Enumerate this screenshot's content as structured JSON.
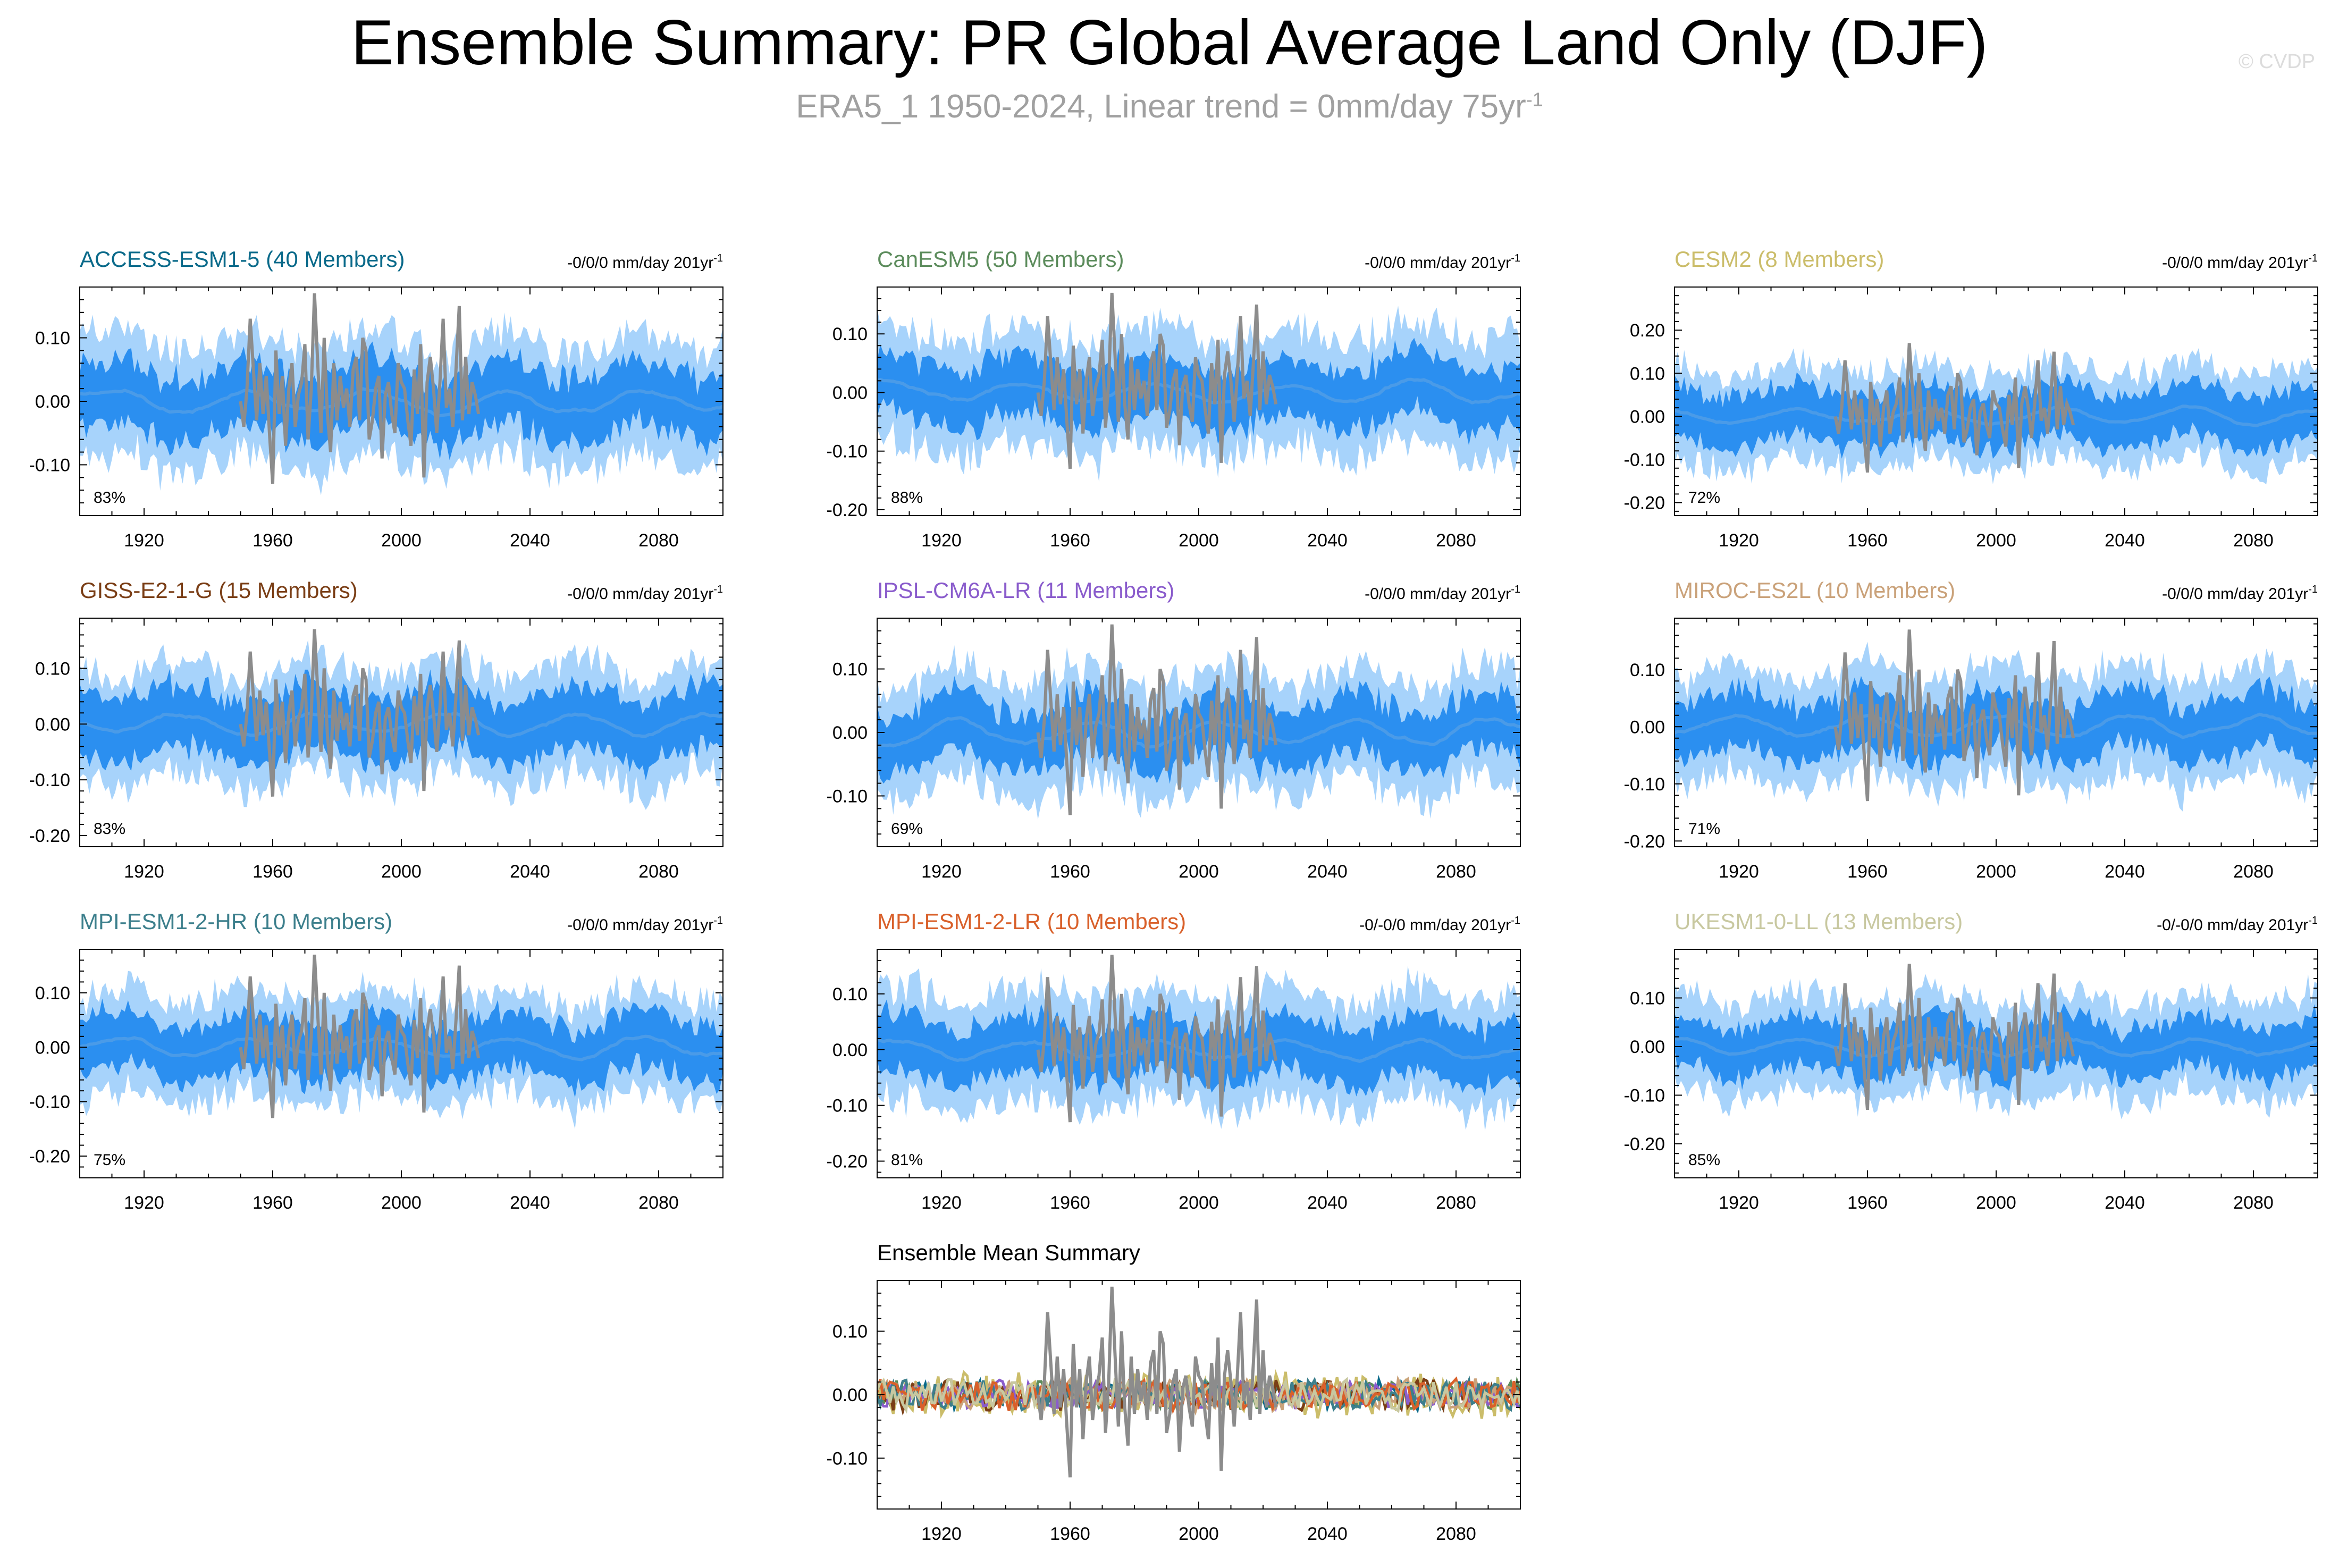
{
  "header": {
    "title": "Ensemble Summary: PR Global Average Land Only (DJF)",
    "subtitle_main": "ERA5_1 1950-2024, Linear trend = 0mm/day 75yr",
    "subtitle_sup": "-1",
    "watermark": "© CVDP"
  },
  "colors": {
    "obs_line": "#8c8c8c",
    "band_outer": "#a7d3fb",
    "band_inner": "#2b8ff0",
    "mean_line": "#4a9be8",
    "frame": "#000000"
  },
  "chart_data": [
    {
      "type": "area",
      "title": "ACCESS-ESM1-5 (40 Members)",
      "title_color": "#0a6a8a",
      "trend_label": "-0/0/0 mm/day 201yr",
      "trend_sup": "-1",
      "percent_label": "83%",
      "xlim": [
        1900,
        2100
      ],
      "x_ticks": [
        1920,
        1960,
        2000,
        2040,
        2080
      ],
      "ylim": [
        -0.18,
        0.18
      ],
      "y_ticks": [
        0.1,
        0.0,
        -0.1
      ],
      "y_tick_labels": [
        "0.10",
        "0.00",
        "-0.10"
      ],
      "outer_band_halfwidth": 0.095,
      "inner_band_halfwidth": 0.05,
      "obs_period": [
        1950,
        2024
      ],
      "series": [
        {
          "name": "ACCESS-ESM1-5",
          "kind": "ensemble"
        },
        {
          "name": "ERA5_1",
          "kind": "observation"
        }
      ]
    },
    {
      "type": "area",
      "title": "CanESM5 (50 Members)",
      "title_color": "#5c8c5c",
      "trend_label": "-0/0/0 mm/day 201yr",
      "trend_sup": "-1",
      "percent_label": "88%",
      "xlim": [
        1900,
        2100
      ],
      "x_ticks": [
        1920,
        1960,
        2000,
        2040,
        2080
      ],
      "ylim": [
        -0.21,
        0.18
      ],
      "y_ticks": [
        0.1,
        0.0,
        -0.1,
        -0.2
      ],
      "y_tick_labels": [
        "0.10",
        "0.00",
        "-0.10",
        "-0.20"
      ],
      "outer_band_halfwidth": 0.1,
      "inner_band_halfwidth": 0.05,
      "obs_period": [
        1950,
        2024
      ],
      "series": [
        {
          "name": "CanESM5",
          "kind": "ensemble"
        },
        {
          "name": "ERA5_1",
          "kind": "observation"
        }
      ]
    },
    {
      "type": "area",
      "title": "CESM2 (8 Members)",
      "title_color": "#cbbd6a",
      "trend_label": "-0/0/0 mm/day 201yr",
      "trend_sup": "-1",
      "percent_label": "72%",
      "xlim": [
        1900,
        2100
      ],
      "x_ticks": [
        1920,
        1960,
        2000,
        2040,
        2080
      ],
      "ylim": [
        -0.23,
        0.3
      ],
      "y_ticks": [
        0.2,
        0.1,
        0.0,
        -0.1,
        -0.2
      ],
      "y_tick_labels": [
        "0.20",
        "0.10",
        "0.00",
        "-0.10",
        "-0.20"
      ],
      "outer_band_halfwidth": 0.11,
      "inner_band_halfwidth": 0.06,
      "obs_period": [
        1950,
        2024
      ],
      "series": [
        {
          "name": "CESM2",
          "kind": "ensemble"
        },
        {
          "name": "ERA5_1",
          "kind": "observation"
        }
      ]
    },
    {
      "type": "area",
      "title": "GISS-E2-1-G (15 Members)",
      "title_color": "#7a3e16",
      "trend_label": "-0/0/0 mm/day 201yr",
      "trend_sup": "-1",
      "percent_label": "83%",
      "xlim": [
        1900,
        2100
      ],
      "x_ticks": [
        1920,
        1960,
        2000,
        2040,
        2080
      ],
      "ylim": [
        -0.22,
        0.19
      ],
      "y_ticks": [
        0.1,
        0.0,
        -0.1,
        -0.2
      ],
      "y_tick_labels": [
        "0.10",
        "0.00",
        "-0.10",
        "-0.20"
      ],
      "outer_band_halfwidth": 0.1,
      "inner_band_halfwidth": 0.055,
      "obs_period": [
        1950,
        2024
      ],
      "series": [
        {
          "name": "GISS-E2-1-G",
          "kind": "ensemble"
        },
        {
          "name": "ERA5_1",
          "kind": "observation"
        }
      ]
    },
    {
      "type": "area",
      "title": "IPSL-CM6A-LR (11 Members)",
      "title_color": "#8a5ccc",
      "trend_label": "-0/0/0 mm/day 201yr",
      "trend_sup": "-1",
      "percent_label": "69%",
      "xlim": [
        1900,
        2100
      ],
      "x_ticks": [
        1920,
        1960,
        2000,
        2040,
        2080
      ],
      "ylim": [
        -0.18,
        0.18
      ],
      "y_ticks": [
        0.1,
        0.0,
        -0.1
      ],
      "y_tick_labels": [
        "0.10",
        "0.00",
        "-0.10"
      ],
      "outer_band_halfwidth": 0.09,
      "inner_band_halfwidth": 0.045,
      "obs_period": [
        1950,
        2024
      ],
      "series": [
        {
          "name": "IPSL-CM6A-LR",
          "kind": "ensemble"
        },
        {
          "name": "ERA5_1",
          "kind": "observation"
        }
      ]
    },
    {
      "type": "area",
      "title": "MIROC-ES2L (10 Members)",
      "title_color": "#caa27a",
      "trend_label": "-0/0/0 mm/day 201yr",
      "trend_sup": "-1",
      "percent_label": "71%",
      "xlim": [
        1900,
        2100
      ],
      "x_ticks": [
        1920,
        1960,
        2000,
        2040,
        2080
      ],
      "ylim": [
        -0.21,
        0.19
      ],
      "y_ticks": [
        0.1,
        0.0,
        -0.1,
        -0.2
      ],
      "y_tick_labels": [
        "0.10",
        "0.00",
        "-0.10",
        "-0.20"
      ],
      "outer_band_halfwidth": 0.095,
      "inner_band_halfwidth": 0.05,
      "obs_period": [
        1950,
        2024
      ],
      "series": [
        {
          "name": "MIROC-ES2L",
          "kind": "ensemble"
        },
        {
          "name": "ERA5_1",
          "kind": "observation"
        }
      ]
    },
    {
      "type": "area",
      "title": "MPI-ESM1-2-HR (10 Members)",
      "title_color": "#3c7f8c",
      "trend_label": "-0/0/0 mm/day 201yr",
      "trend_sup": "-1",
      "percent_label": "75%",
      "xlim": [
        1900,
        2100
      ],
      "x_ticks": [
        1920,
        1960,
        2000,
        2040,
        2080
      ],
      "ylim": [
        -0.24,
        0.18
      ],
      "y_ticks": [
        0.1,
        0.0,
        -0.1,
        -0.2
      ],
      "y_tick_labels": [
        "0.10",
        "0.00",
        "-0.10",
        "-0.20"
      ],
      "outer_band_halfwidth": 0.095,
      "inner_band_halfwidth": 0.05,
      "obs_period": [
        1950,
        2024
      ],
      "series": [
        {
          "name": "MPI-ESM1-2-HR",
          "kind": "ensemble"
        },
        {
          "name": "ERA5_1",
          "kind": "observation"
        }
      ]
    },
    {
      "type": "area",
      "title": "MPI-ESM1-2-LR (10 Members)",
      "title_color": "#d9602a",
      "trend_label": "-0/-0/0 mm/day 201yr",
      "trend_sup": "-1",
      "percent_label": "81%",
      "xlim": [
        1900,
        2100
      ],
      "x_ticks": [
        1920,
        1960,
        2000,
        2040,
        2080
      ],
      "ylim": [
        -0.23,
        0.18
      ],
      "y_ticks": [
        0.1,
        0.0,
        -0.1,
        -0.2
      ],
      "y_tick_labels": [
        "0.10",
        "0.00",
        "-0.10",
        "-0.20"
      ],
      "outer_band_halfwidth": 0.1,
      "inner_band_halfwidth": 0.05,
      "obs_period": [
        1950,
        2024
      ],
      "series": [
        {
          "name": "MPI-ESM1-2-LR",
          "kind": "ensemble"
        },
        {
          "name": "ERA5_1",
          "kind": "observation"
        }
      ]
    },
    {
      "type": "area",
      "title": "UKESM1-0-LL (13 Members)",
      "title_color": "#c8c8a0",
      "trend_label": "-0/-0/0 mm/day 201yr",
      "trend_sup": "-1",
      "percent_label": "85%",
      "xlim": [
        1900,
        2100
      ],
      "x_ticks": [
        1920,
        1960,
        2000,
        2040,
        2080
      ],
      "ylim": [
        -0.27,
        0.2
      ],
      "y_ticks": [
        0.1,
        0.0,
        -0.1,
        -0.2
      ],
      "y_tick_labels": [
        "0.10",
        "0.00",
        "-0.10",
        "-0.20"
      ],
      "outer_band_halfwidth": 0.1,
      "inner_band_halfwidth": 0.05,
      "obs_period": [
        1950,
        2024
      ],
      "series": [
        {
          "name": "UKESM1-0-LL",
          "kind": "ensemble"
        },
        {
          "name": "ERA5_1",
          "kind": "observation"
        }
      ]
    },
    {
      "type": "line",
      "title": "Ensemble Mean Summary",
      "title_color": "#000000",
      "xlim": [
        1900,
        2100
      ],
      "x_ticks": [
        1920,
        1960,
        2000,
        2040,
        2080
      ],
      "ylim": [
        -0.18,
        0.18
      ],
      "y_ticks": [
        0.1,
        0.0,
        -0.1
      ],
      "y_tick_labels": [
        "0.10",
        "0.00",
        "-0.10"
      ],
      "series": [
        {
          "name": "ACCESS-ESM1-5",
          "color": "#0a6a8a",
          "amp": 0.02
        },
        {
          "name": "CanESM5",
          "color": "#5c8c5c",
          "amp": 0.02
        },
        {
          "name": "CESM2",
          "color": "#cbbd6a",
          "amp": 0.035
        },
        {
          "name": "GISS-E2-1-G",
          "color": "#7a3e16",
          "amp": 0.022
        },
        {
          "name": "IPSL-CM6A-LR",
          "color": "#8a5ccc",
          "amp": 0.02
        },
        {
          "name": "MIROC-ES2L",
          "color": "#caa27a",
          "amp": 0.022
        },
        {
          "name": "MPI-ESM1-2-HR",
          "color": "#3c7f8c",
          "amp": 0.02
        },
        {
          "name": "MPI-ESM1-2-LR",
          "color": "#d9602a",
          "amp": 0.022
        },
        {
          "name": "UKESM1-0-LL",
          "color": "#c8c8a0",
          "amp": 0.022
        },
        {
          "name": "ERA5_1",
          "color": "#8c8c8c",
          "kind": "observation"
        }
      ]
    }
  ],
  "observation_values": [
    0.0,
    -0.04,
    0.02,
    0.13,
    0.05,
    -0.03,
    0.06,
    -0.02,
    0.04,
    -0.05,
    -0.13,
    0.08,
    -0.02,
    0.04,
    -0.07,
    0.02,
    0.06,
    -0.04,
    0.01,
    0.03,
    0.09,
    -0.06,
    0.02,
    0.17,
    0.06,
    -0.05,
    0.1,
    -0.02,
    -0.08,
    0.06,
    -0.03,
    0.04,
    -0.01,
    0.02,
    -0.04,
    0.05,
    0.07,
    -0.03,
    0.1,
    0.08,
    -0.06,
    -0.03,
    0.02,
    0.04,
    -0.09,
    0.01,
    0.03,
    -0.02,
    -0.05,
    0.06,
    0.03,
    0.02,
    -0.03,
    -0.07,
    0.05,
    -0.02,
    0.09,
    -0.12,
    0.03,
    0.07,
    0.02,
    -0.05,
    0.03,
    0.13,
    -0.01,
    0.02,
    -0.04,
    0.05,
    0.15,
    -0.03,
    0.07,
    -0.02,
    0.03,
    0.01,
    -0.02
  ]
}
